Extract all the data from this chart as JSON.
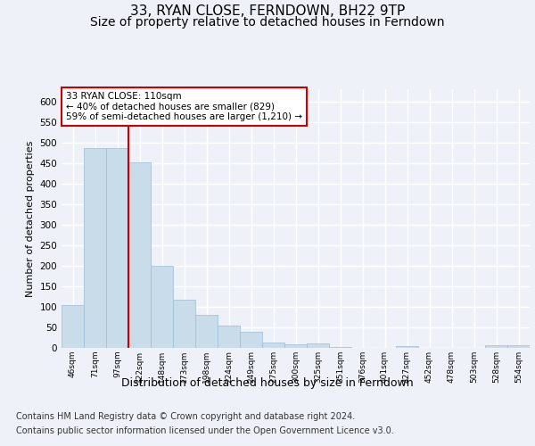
{
  "title": "33, RYAN CLOSE, FERNDOWN, BH22 9TP",
  "subtitle": "Size of property relative to detached houses in Ferndown",
  "xlabel": "Distribution of detached houses by size in Ferndown",
  "ylabel": "Number of detached properties",
  "categories": [
    "46sqm",
    "71sqm",
    "97sqm",
    "122sqm",
    "148sqm",
    "173sqm",
    "198sqm",
    "224sqm",
    "249sqm",
    "275sqm",
    "300sqm",
    "325sqm",
    "351sqm",
    "376sqm",
    "401sqm",
    "427sqm",
    "452sqm",
    "478sqm",
    "503sqm",
    "528sqm",
    "554sqm"
  ],
  "values": [
    105,
    487,
    487,
    452,
    200,
    118,
    81,
    55,
    40,
    14,
    8,
    10,
    3,
    1,
    1,
    5,
    0,
    0,
    0,
    6,
    6
  ],
  "bar_color": "#c9dcea",
  "bar_edge_color": "#9bbcd6",
  "red_line_x": 2.5,
  "annotation_text": "33 RYAN CLOSE: 110sqm\n← 40% of detached houses are smaller (829)\n59% of semi-detached houses are larger (1,210) →",
  "annotation_box_color": "#ffffff",
  "annotation_box_edge": "#cc0000",
  "property_line_color": "#cc0000",
  "ylim": [
    0,
    630
  ],
  "yticks": [
    0,
    50,
    100,
    150,
    200,
    250,
    300,
    350,
    400,
    450,
    500,
    550,
    600
  ],
  "footer_line1": "Contains HM Land Registry data © Crown copyright and database right 2024.",
  "footer_line2": "Contains public sector information licensed under the Open Government Licence v3.0.",
  "background_color": "#eef2f8",
  "plot_bg_color": "#eef2f8",
  "grid_color": "#ffffff",
  "title_fontsize": 11,
  "subtitle_fontsize": 10,
  "xlabel_fontsize": 9,
  "ylabel_fontsize": 8,
  "annotation_fontsize": 7.5,
  "footer_fontsize": 7
}
